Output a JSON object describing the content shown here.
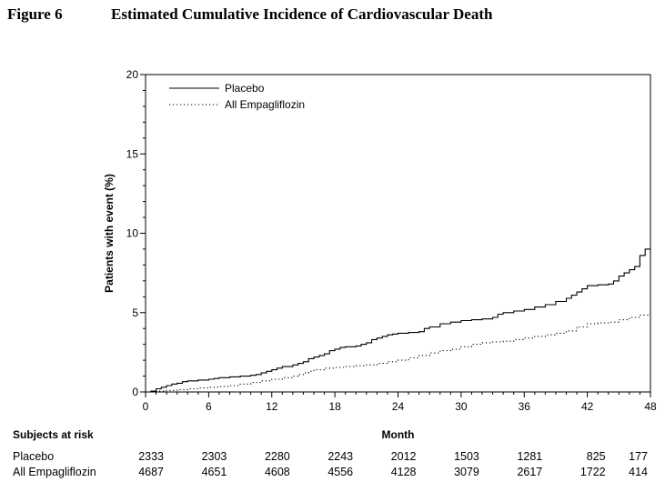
{
  "figure": {
    "label": "Figure 6",
    "title": "Estimated Cumulative Incidence of Cardiovascular Death"
  },
  "chart_data": {
    "type": "line",
    "xlabel": "Month",
    "ylabel": "Patients with event (%)",
    "xlim": [
      0,
      48
    ],
    "ylim": [
      0,
      20
    ],
    "x_ticks": [
      0,
      6,
      12,
      18,
      24,
      30,
      36,
      42,
      48
    ],
    "y_ticks": [
      0,
      5,
      10,
      15,
      20
    ],
    "grid": false,
    "legend_position": "top-left",
    "series": [
      {
        "name": "Placebo",
        "style": "solid",
        "color": "#000000",
        "points": [
          [
            0,
            0
          ],
          [
            0.5,
            0.05
          ],
          [
            1,
            0.2
          ],
          [
            1.5,
            0.3
          ],
          [
            2,
            0.4
          ],
          [
            2.5,
            0.5
          ],
          [
            3,
            0.55
          ],
          [
            3.5,
            0.65
          ],
          [
            4,
            0.7
          ],
          [
            5,
            0.75
          ],
          [
            6,
            0.8
          ],
          [
            6.5,
            0.85
          ],
          [
            7,
            0.9
          ],
          [
            8,
            0.95
          ],
          [
            9,
            1.0
          ],
          [
            10,
            1.05
          ],
          [
            10.5,
            1.1
          ],
          [
            11,
            1.2
          ],
          [
            11.5,
            1.3
          ],
          [
            12,
            1.4
          ],
          [
            12.5,
            1.5
          ],
          [
            13,
            1.6
          ],
          [
            14,
            1.7
          ],
          [
            14.5,
            1.8
          ],
          [
            15,
            1.9
          ],
          [
            15.5,
            2.1
          ],
          [
            16,
            2.2
          ],
          [
            16.5,
            2.3
          ],
          [
            17,
            2.4
          ],
          [
            17.5,
            2.6
          ],
          [
            18,
            2.7
          ],
          [
            18.5,
            2.8
          ],
          [
            19,
            2.85
          ],
          [
            20,
            2.9
          ],
          [
            20.5,
            3.0
          ],
          [
            21,
            3.1
          ],
          [
            21.5,
            3.3
          ],
          [
            22,
            3.4
          ],
          [
            22.5,
            3.5
          ],
          [
            23,
            3.6
          ],
          [
            23.5,
            3.65
          ],
          [
            24,
            3.7
          ],
          [
            25,
            3.75
          ],
          [
            26,
            3.8
          ],
          [
            26.5,
            4.0
          ],
          [
            27,
            4.1
          ],
          [
            28,
            4.3
          ],
          [
            29,
            4.4
          ],
          [
            30,
            4.5
          ],
          [
            31,
            4.55
          ],
          [
            32,
            4.6
          ],
          [
            33,
            4.7
          ],
          [
            33.5,
            4.9
          ],
          [
            34,
            5.0
          ],
          [
            35,
            5.1
          ],
          [
            36,
            5.2
          ],
          [
            37,
            5.35
          ],
          [
            38,
            5.5
          ],
          [
            39,
            5.7
          ],
          [
            40,
            5.9
          ],
          [
            40.5,
            6.1
          ],
          [
            41,
            6.3
          ],
          [
            41.5,
            6.5
          ],
          [
            42,
            6.7
          ],
          [
            43,
            6.75
          ],
          [
            44,
            6.8
          ],
          [
            44.5,
            7.0
          ],
          [
            45,
            7.3
          ],
          [
            45.5,
            7.5
          ],
          [
            46,
            7.7
          ],
          [
            46.5,
            7.9
          ],
          [
            47,
            8.6
          ],
          [
            47.5,
            9.0
          ],
          [
            48,
            9.0
          ]
        ]
      },
      {
        "name": "All Empagliflozin",
        "style": "dotted",
        "color": "#000000",
        "points": [
          [
            0,
            0
          ],
          [
            1,
            0.05
          ],
          [
            2,
            0.1
          ],
          [
            3,
            0.15
          ],
          [
            4,
            0.2
          ],
          [
            5,
            0.25
          ],
          [
            6,
            0.3
          ],
          [
            7,
            0.35
          ],
          [
            8,
            0.4
          ],
          [
            9,
            0.5
          ],
          [
            10,
            0.6
          ],
          [
            11,
            0.7
          ],
          [
            12,
            0.8
          ],
          [
            13,
            0.9
          ],
          [
            14,
            1.0
          ],
          [
            14.5,
            1.1
          ],
          [
            15,
            1.2
          ],
          [
            15.5,
            1.3
          ],
          [
            16,
            1.4
          ],
          [
            17,
            1.5
          ],
          [
            18,
            1.55
          ],
          [
            19,
            1.6
          ],
          [
            20,
            1.65
          ],
          [
            21,
            1.7
          ],
          [
            22,
            1.8
          ],
          [
            23,
            1.9
          ],
          [
            24,
            2.0
          ],
          [
            25,
            2.15
          ],
          [
            26,
            2.3
          ],
          [
            27,
            2.45
          ],
          [
            28,
            2.6
          ],
          [
            29,
            2.7
          ],
          [
            30,
            2.85
          ],
          [
            31,
            3.0
          ],
          [
            32,
            3.1
          ],
          [
            33,
            3.15
          ],
          [
            34,
            3.2
          ],
          [
            35,
            3.3
          ],
          [
            36,
            3.4
          ],
          [
            37,
            3.5
          ],
          [
            38,
            3.6
          ],
          [
            39,
            3.7
          ],
          [
            40,
            3.85
          ],
          [
            41,
            4.1
          ],
          [
            42,
            4.3
          ],
          [
            43,
            4.35
          ],
          [
            44,
            4.4
          ],
          [
            45,
            4.55
          ],
          [
            46,
            4.7
          ],
          [
            47,
            4.85
          ],
          [
            48,
            4.9
          ]
        ]
      }
    ]
  },
  "risk_table": {
    "title": "Subjects at risk",
    "months": [
      0,
      6,
      12,
      18,
      24,
      30,
      36,
      42,
      48
    ],
    "rows": [
      {
        "label": "Placebo",
        "values": [
          "2333",
          "2303",
          "2280",
          "2243",
          "2012",
          "1503",
          "1281",
          "825",
          "177"
        ]
      },
      {
        "label": "All Empagliflozin",
        "values": [
          "4687",
          "4651",
          "4608",
          "4556",
          "4128",
          "3079",
          "2617",
          "1722",
          "414"
        ]
      }
    ]
  }
}
